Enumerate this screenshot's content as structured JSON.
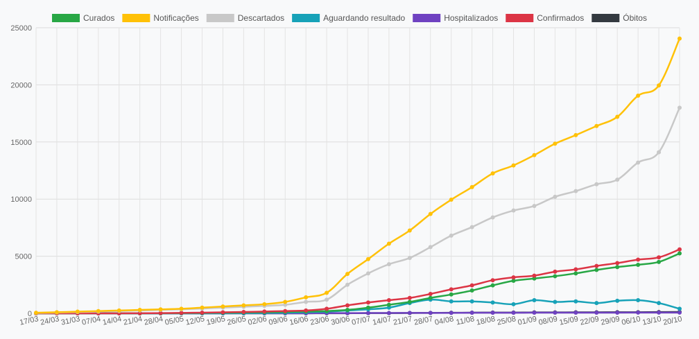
{
  "chart_data": {
    "type": "line",
    "categories": [
      "17/03",
      "24/03",
      "31/03",
      "07/04",
      "14/04",
      "21/04",
      "28/04",
      "05/05",
      "12/05",
      "19/05",
      "26/05",
      "02/06",
      "09/06",
      "16/06",
      "23/06",
      "30/06",
      "07/07",
      "14/07",
      "21/07",
      "28/07",
      "04/08",
      "11/08",
      "18/08",
      "25/08",
      "01/09",
      "08/09",
      "15/09",
      "22/09",
      "29/09",
      "06/10",
      "13/10",
      "20/10"
    ],
    "ylim": [
      0,
      25000
    ],
    "yticks": [
      0,
      5000,
      10000,
      15000,
      20000,
      25000
    ],
    "grid": true,
    "legend_position": "top",
    "series": [
      {
        "name": "Curados",
        "color": "#28a745",
        "values": [
          0,
          0,
          0,
          0,
          0,
          0,
          10,
          20,
          40,
          60,
          80,
          100,
          130,
          160,
          200,
          300,
          500,
          750,
          1000,
          1350,
          1650,
          2000,
          2450,
          2850,
          3050,
          3250,
          3500,
          3800,
          4050,
          4250,
          4500,
          5250
        ]
      },
      {
        "name": "Notificações",
        "color": "#ffc107",
        "values": [
          50,
          100,
          150,
          200,
          250,
          300,
          350,
          400,
          500,
          600,
          700,
          800,
          1000,
          1400,
          1800,
          3450,
          4750,
          6100,
          7250,
          8700,
          9950,
          11050,
          12250,
          12950,
          13850,
          14850,
          15600,
          16400,
          17200,
          19050,
          19950,
          24050
        ]
      },
      {
        "name": "Descartados",
        "color": "#c8c8c8",
        "values": [
          30,
          70,
          110,
          150,
          200,
          250,
          300,
          350,
          420,
          500,
          580,
          650,
          750,
          1000,
          1200,
          2500,
          3500,
          4300,
          4850,
          5800,
          6800,
          7550,
          8400,
          9000,
          9400,
          10200,
          10700,
          11300,
          11700,
          13200,
          14100,
          18000
        ]
      },
      {
        "name": "Aguardando resultado",
        "color": "#17a2b8",
        "values": [
          0,
          0,
          0,
          0,
          0,
          0,
          0,
          0,
          0,
          10,
          20,
          40,
          60,
          100,
          150,
          250,
          350,
          500,
          900,
          1200,
          1050,
          1050,
          950,
          800,
          1150,
          1000,
          1050,
          900,
          1100,
          1150,
          900,
          400
        ]
      },
      {
        "name": "Hospitalizados",
        "color": "#6f42c1",
        "values": [
          0,
          0,
          0,
          0,
          0,
          0,
          0,
          0,
          0,
          0,
          10,
          10,
          10,
          10,
          20,
          20,
          30,
          30,
          40,
          40,
          40,
          50,
          50,
          50,
          60,
          60,
          60,
          60,
          60,
          70,
          70,
          70
        ]
      },
      {
        "name": "Confirmados",
        "color": "#dc3545",
        "values": [
          0,
          0,
          0,
          0,
          0,
          10,
          20,
          40,
          60,
          90,
          120,
          160,
          200,
          250,
          400,
          700,
          950,
          1150,
          1350,
          1700,
          2100,
          2450,
          2900,
          3150,
          3300,
          3650,
          3850,
          4150,
          4400,
          4700,
          4900,
          5600
        ]
      },
      {
        "name": "Óbitos",
        "color": "#343a40",
        "values": [
          0,
          0,
          0,
          0,
          0,
          0,
          0,
          0,
          0,
          0,
          0,
          0,
          0,
          0,
          10,
          10,
          20,
          20,
          30,
          40,
          50,
          60,
          70,
          70,
          80,
          80,
          90,
          90,
          100,
          100,
          110,
          120
        ]
      }
    ]
  }
}
